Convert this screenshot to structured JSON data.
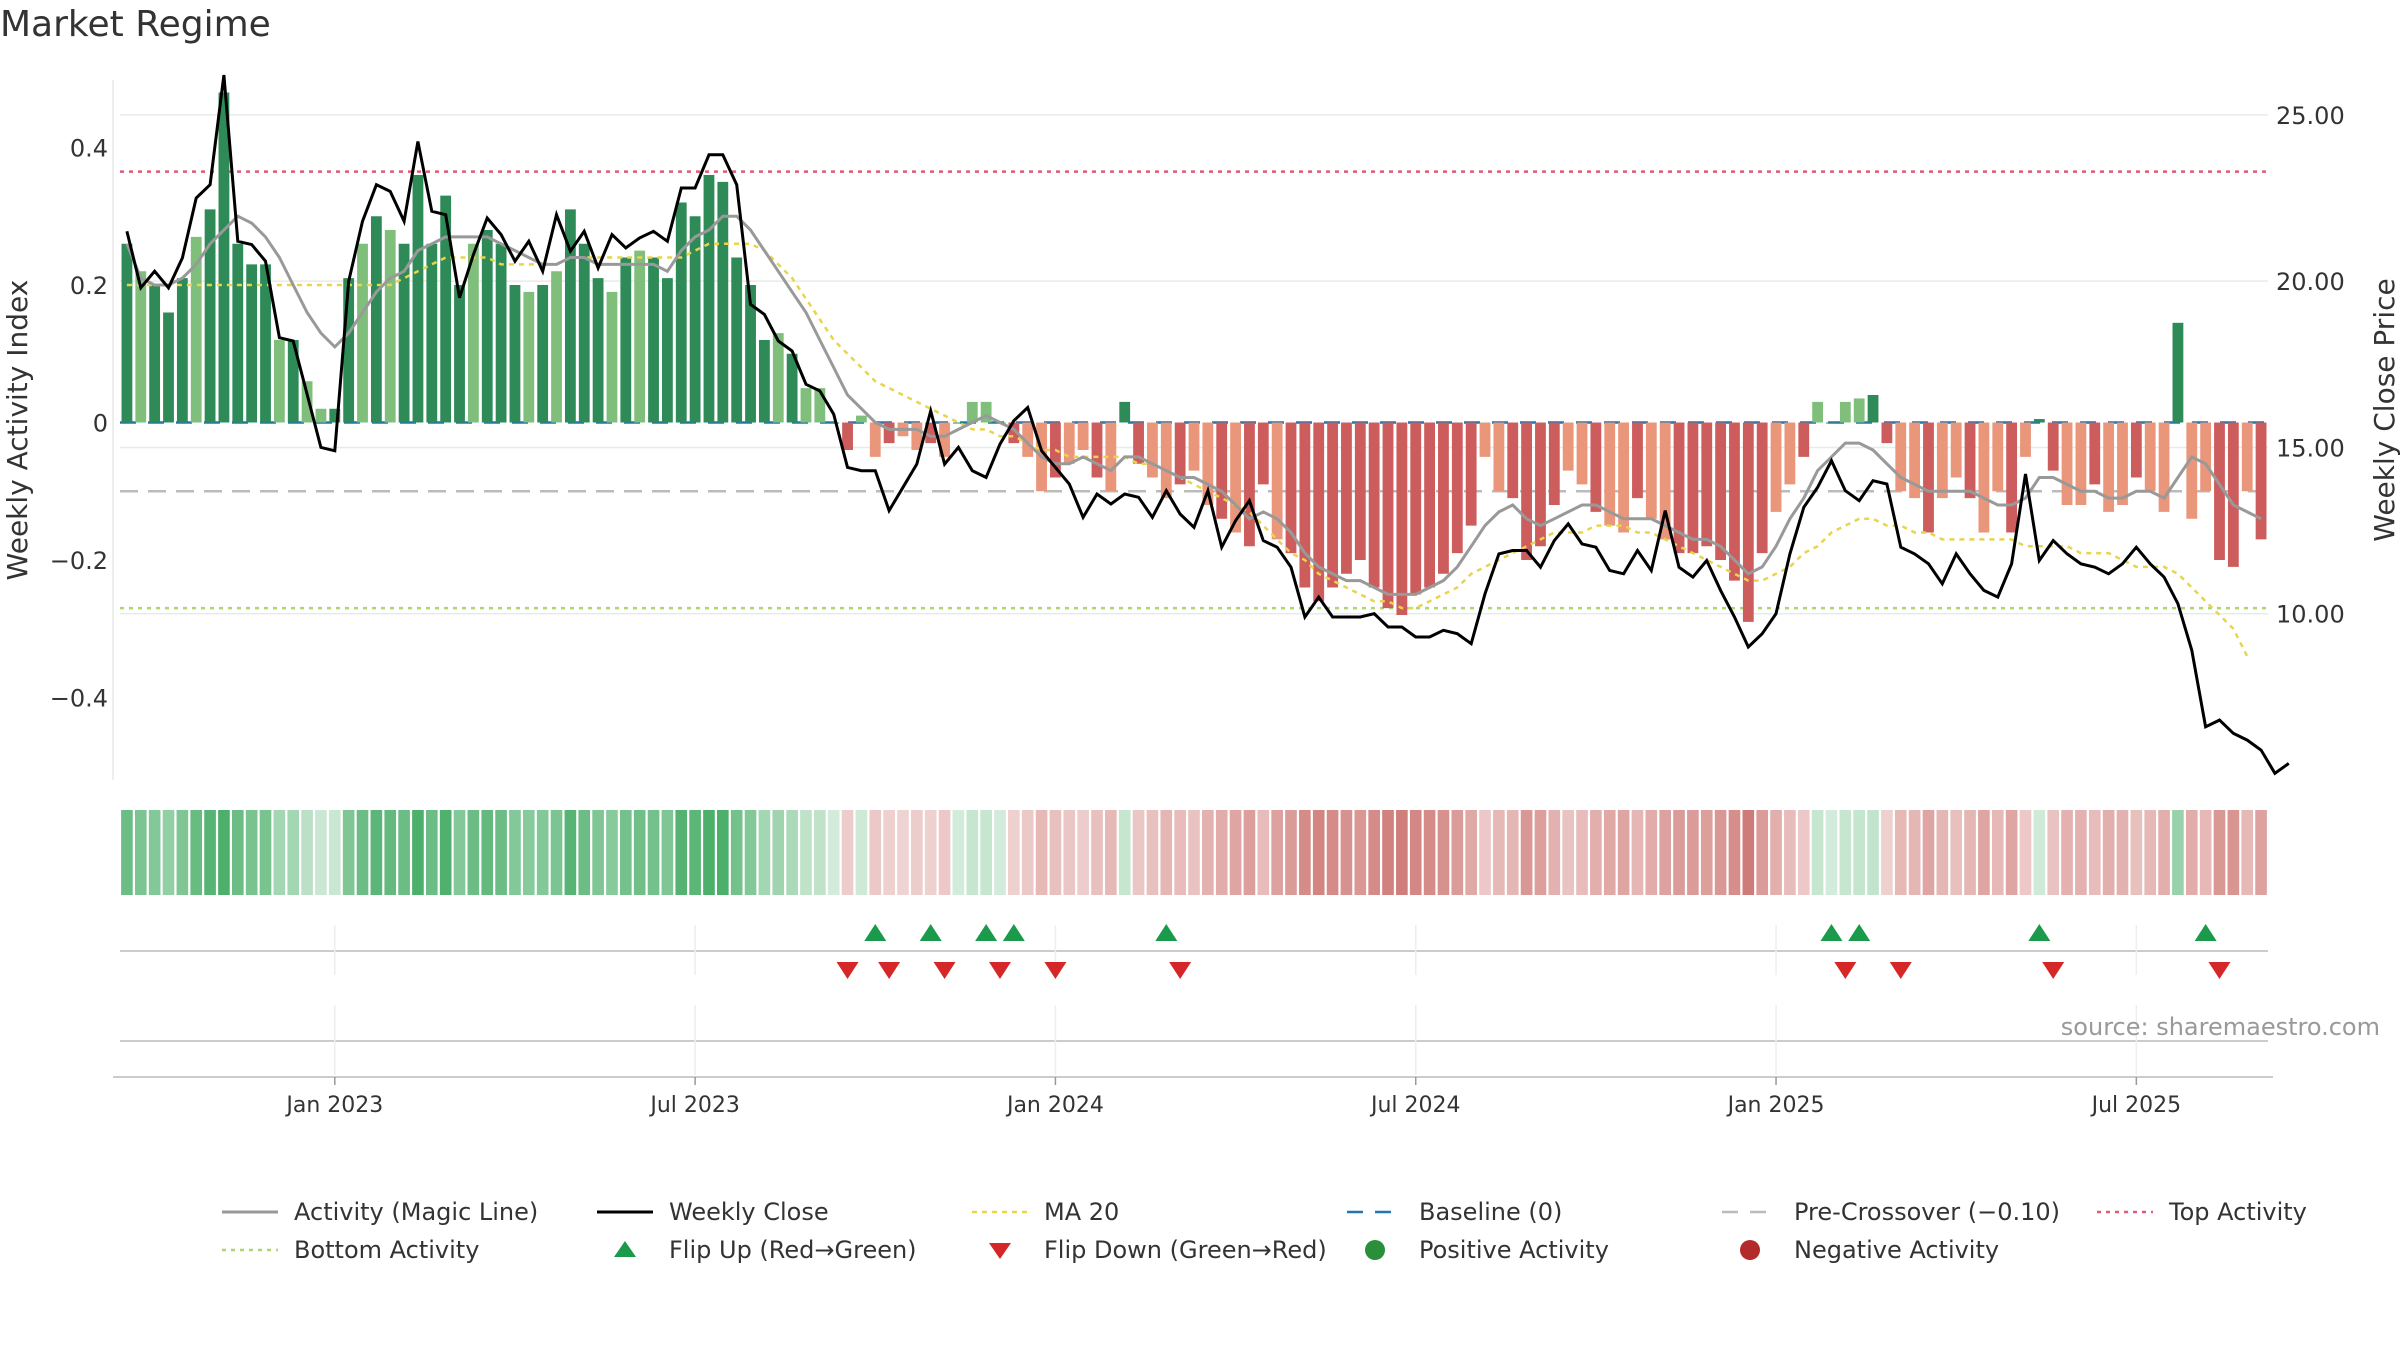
{
  "title": "Market Regime",
  "source": "source: sharemaestro.com",
  "colors": {
    "green_dark": "#2e8b57",
    "green_light": "#7fbf7b",
    "red_dark": "#cd5c5c",
    "red_light": "#e9967a",
    "activity_line": "#999999",
    "close_line": "#000000",
    "ma20": "#e8d44d",
    "baseline": "#1f77b4",
    "pre_crossover": "#bbbbbb",
    "top_activity": "#e05a7a",
    "bottom_activity": "#a8d86e",
    "flip_up": "#1a9a4a",
    "flip_down": "#d62728"
  },
  "chart_data": {
    "type": "bar",
    "ylabel_left": "Weekly Activity Index",
    "ylabel_right": "Weekly Close Price",
    "ylim_left": [
      -0.52,
      0.52
    ],
    "ylim_right": [
      5.0,
      26.5
    ],
    "left_ticks": [
      {
        "value": 0.4,
        "label": "0.4"
      },
      {
        "value": 0.2,
        "label": "0.2"
      },
      {
        "value": 0,
        "label": "0"
      },
      {
        "value": -0.2,
        "label": "−0.2"
      },
      {
        "value": -0.4,
        "label": "−0.4"
      }
    ],
    "right_ticks": [
      {
        "value": 25,
        "label": "25.00"
      },
      {
        "value": 20,
        "label": "20.00"
      },
      {
        "value": 15,
        "label": "15.00"
      },
      {
        "value": 10,
        "label": "10.00"
      }
    ],
    "x_ticks": [
      {
        "index": 15,
        "label": "Jan 2023"
      },
      {
        "index": 41,
        "label": "Jul 2023"
      },
      {
        "index": 67,
        "label": "Jan 2024"
      },
      {
        "index": 93,
        "label": "Jul 2024"
      },
      {
        "index": 119,
        "label": "Jan 2025"
      },
      {
        "index": 145,
        "label": "Jul 2025"
      }
    ],
    "reference_lines": {
      "top_activity": 0.365,
      "bottom_activity": -0.27,
      "pre_crossover": -0.1,
      "baseline": 0
    },
    "activity": [
      0.26,
      0.22,
      0.2,
      0.16,
      0.21,
      0.27,
      0.31,
      0.48,
      0.26,
      0.23,
      0.23,
      0.12,
      0.12,
      0.06,
      0.02,
      0.02,
      0.21,
      0.26,
      0.3,
      0.28,
      0.26,
      0.36,
      0.26,
      0.33,
      0.2,
      0.26,
      0.28,
      0.26,
      0.2,
      0.19,
      0.2,
      0.22,
      0.31,
      0.26,
      0.21,
      0.19,
      0.24,
      0.25,
      0.24,
      0.21,
      0.32,
      0.3,
      0.36,
      0.35,
      0.24,
      0.2,
      0.12,
      0.13,
      0.1,
      0.05,
      0.05,
      0.0,
      -0.04,
      0.01,
      -0.05,
      -0.03,
      -0.02,
      -0.04,
      -0.03,
      -0.05,
      0.0,
      0.03,
      0.03,
      0.0,
      -0.03,
      -0.05,
      -0.1,
      -0.08,
      -0.06,
      -0.04,
      -0.08,
      -0.1,
      0.03,
      -0.06,
      -0.08,
      -0.11,
      -0.09,
      -0.07,
      -0.12,
      -0.14,
      -0.16,
      -0.18,
      -0.09,
      -0.17,
      -0.19,
      -0.24,
      -0.26,
      -0.24,
      -0.22,
      -0.2,
      -0.24,
      -0.27,
      -0.28,
      -0.25,
      -0.24,
      -0.22,
      -0.19,
      -0.15,
      -0.05,
      -0.1,
      -0.11,
      -0.2,
      -0.18,
      -0.12,
      -0.07,
      -0.09,
      -0.13,
      -0.15,
      -0.16,
      -0.11,
      -0.14,
      -0.17,
      -0.19,
      -0.19,
      -0.18,
      -0.2,
      -0.23,
      -0.29,
      -0.19,
      -0.13,
      -0.09,
      -0.05,
      0.03,
      0.0,
      0.03,
      0.035,
      0.04,
      -0.03,
      -0.1,
      -0.11,
      -0.16,
      -0.11,
      -0.08,
      -0.11,
      -0.16,
      -0.1,
      -0.16,
      -0.05,
      0.005,
      -0.07,
      -0.12,
      -0.12,
      -0.09,
      -0.13,
      -0.12,
      -0.08,
      -0.1,
      -0.13,
      0.145,
      -0.14,
      -0.1,
      -0.2,
      -0.21,
      -0.1,
      -0.17
    ],
    "magic_line": [
      0.26,
      0.21,
      0.2,
      0.2,
      0.21,
      0.23,
      0.26,
      0.28,
      0.3,
      0.29,
      0.27,
      0.24,
      0.2,
      0.16,
      0.13,
      0.11,
      0.13,
      0.16,
      0.19,
      0.21,
      0.22,
      0.25,
      0.26,
      0.27,
      0.27,
      0.27,
      0.27,
      0.26,
      0.25,
      0.24,
      0.23,
      0.23,
      0.24,
      0.24,
      0.23,
      0.23,
      0.23,
      0.23,
      0.23,
      0.22,
      0.25,
      0.27,
      0.28,
      0.3,
      0.3,
      0.28,
      0.25,
      0.22,
      0.19,
      0.16,
      0.12,
      0.08,
      0.04,
      0.02,
      0.0,
      -0.01,
      -0.01,
      -0.01,
      -0.02,
      -0.02,
      -0.01,
      0.0,
      0.01,
      0.0,
      -0.01,
      -0.03,
      -0.05,
      -0.06,
      -0.06,
      -0.05,
      -0.06,
      -0.07,
      -0.05,
      -0.05,
      -0.06,
      -0.07,
      -0.08,
      -0.08,
      -0.09,
      -0.1,
      -0.12,
      -0.14,
      -0.13,
      -0.14,
      -0.16,
      -0.19,
      -0.21,
      -0.22,
      -0.23,
      -0.23,
      -0.24,
      -0.25,
      -0.25,
      -0.25,
      -0.24,
      -0.23,
      -0.21,
      -0.18,
      -0.15,
      -0.13,
      -0.12,
      -0.14,
      -0.15,
      -0.14,
      -0.13,
      -0.12,
      -0.12,
      -0.13,
      -0.14,
      -0.14,
      -0.14,
      -0.15,
      -0.16,
      -0.17,
      -0.17,
      -0.18,
      -0.2,
      -0.22,
      -0.21,
      -0.18,
      -0.14,
      -0.11,
      -0.07,
      -0.05,
      -0.03,
      -0.03,
      -0.04,
      -0.06,
      -0.08,
      -0.09,
      -0.1,
      -0.1,
      -0.1,
      -0.1,
      -0.11,
      -0.12,
      -0.12,
      -0.11,
      -0.08,
      -0.08,
      -0.09,
      -0.1,
      -0.1,
      -0.11,
      -0.11,
      -0.1,
      -0.1,
      -0.11,
      -0.08,
      -0.05,
      -0.06,
      -0.09,
      -0.12,
      -0.13,
      -0.14
    ],
    "ma20": [
      0.2,
      0.2,
      0.2,
      0.2,
      0.2,
      0.2,
      0.2,
      0.2,
      0.2,
      0.2,
      0.2,
      0.2,
      0.2,
      0.2,
      0.2,
      0.2,
      0.2,
      0.2,
      0.2,
      0.2,
      0.21,
      0.22,
      0.23,
      0.24,
      0.24,
      0.24,
      0.24,
      0.23,
      0.23,
      0.23,
      0.23,
      0.23,
      0.24,
      0.24,
      0.24,
      0.24,
      0.24,
      0.24,
      0.24,
      0.24,
      0.24,
      0.25,
      0.26,
      0.26,
      0.26,
      0.26,
      0.25,
      0.23,
      0.21,
      0.18,
      0.15,
      0.12,
      0.1,
      0.08,
      0.06,
      0.05,
      0.04,
      0.03,
      0.02,
      0.01,
      0.0,
      -0.01,
      -0.01,
      -0.02,
      -0.02,
      -0.03,
      -0.04,
      -0.04,
      -0.05,
      -0.05,
      -0.05,
      -0.05,
      -0.05,
      -0.06,
      -0.06,
      -0.07,
      -0.08,
      -0.09,
      -0.1,
      -0.11,
      -0.12,
      -0.13,
      -0.15,
      -0.17,
      -0.19,
      -0.2,
      -0.22,
      -0.23,
      -0.24,
      -0.25,
      -0.26,
      -0.26,
      -0.27,
      -0.27,
      -0.26,
      -0.25,
      -0.24,
      -0.22,
      -0.21,
      -0.2,
      -0.19,
      -0.18,
      -0.17,
      -0.16,
      -0.16,
      -0.16,
      -0.15,
      -0.15,
      -0.15,
      -0.16,
      -0.16,
      -0.17,
      -0.18,
      -0.19,
      -0.2,
      -0.21,
      -0.22,
      -0.23,
      -0.23,
      -0.22,
      -0.21,
      -0.19,
      -0.18,
      -0.16,
      -0.15,
      -0.14,
      -0.14,
      -0.15,
      -0.15,
      -0.16,
      -0.16,
      -0.17,
      -0.17,
      -0.17,
      -0.17,
      -0.17,
      -0.17,
      -0.18,
      -0.18,
      -0.18,
      -0.18,
      -0.19,
      -0.19,
      -0.19,
      -0.2,
      -0.21,
      -0.21,
      -0.21,
      -0.22,
      -0.24,
      -0.26,
      -0.28,
      -0.3,
      -0.34
    ],
    "close": [
      21.5,
      19.8,
      20.3,
      19.8,
      20.7,
      22.5,
      22.9,
      26.2,
      21.2,
      21.1,
      20.6,
      18.3,
      18.2,
      16.6,
      15.0,
      14.9,
      20.0,
      21.8,
      22.9,
      22.7,
      21.8,
      24.2,
      22.1,
      22.0,
      19.5,
      20.8,
      21.9,
      21.4,
      20.6,
      21.2,
      20.3,
      22.0,
      20.9,
      21.5,
      20.4,
      21.4,
      21.0,
      21.3,
      21.5,
      21.2,
      22.8,
      22.8,
      23.8,
      23.8,
      22.9,
      19.3,
      19.0,
      18.2,
      17.9,
      16.9,
      16.7,
      16.0,
      14.4,
      14.3,
      14.3,
      13.1,
      13.8,
      14.5,
      16.1,
      14.5,
      15.0,
      14.3,
      14.1,
      15.1,
      15.8,
      16.2,
      14.9,
      14.4,
      13.9,
      12.9,
      13.6,
      13.3,
      13.6,
      13.5,
      12.9,
      13.7,
      13.0,
      12.6,
      13.7,
      12.0,
      12.8,
      13.4,
      12.2,
      12.0,
      11.4,
      9.9,
      10.5,
      9.9,
      9.9,
      9.9,
      10.0,
      9.6,
      9.6,
      9.3,
      9.3,
      9.5,
      9.4,
      9.1,
      10.6,
      11.8,
      11.9,
      11.9,
      11.4,
      12.2,
      12.7,
      12.1,
      12.0,
      11.3,
      11.2,
      11.9,
      11.3,
      13.1,
      11.4,
      11.1,
      11.6,
      10.7,
      9.9,
      9.0,
      9.4,
      10.0,
      11.8,
      13.2,
      13.8,
      14.6,
      13.7,
      13.4,
      14.0,
      13.9,
      12.0,
      11.8,
      11.5,
      10.9,
      11.8,
      11.2,
      10.7,
      10.5,
      11.5,
      14.2,
      11.6,
      12.2,
      11.8,
      11.5,
      11.4,
      11.2,
      11.5,
      12.0,
      11.5,
      11.1,
      10.3,
      8.9,
      6.6,
      6.8,
      6.4,
      6.2,
      5.9,
      5.2,
      5.5
    ],
    "flip_up_indices": [
      54,
      58,
      62,
      64,
      75,
      123,
      125,
      138,
      150
    ],
    "flip_down_indices": [
      52,
      55,
      59,
      63,
      67,
      76,
      124,
      128,
      139,
      151
    ]
  },
  "legend": [
    {
      "key": "activity_line",
      "label": "Activity (Magic Line)"
    },
    {
      "key": "close_line",
      "label": "Weekly Close"
    },
    {
      "key": "ma20",
      "label": "MA 20"
    },
    {
      "key": "baseline",
      "label": "Baseline (0)"
    },
    {
      "key": "pre_crossover",
      "label": "Pre-Crossover (−0.10)"
    },
    {
      "key": "top_activity",
      "label": "Top Activity"
    },
    {
      "key": "bottom_activity",
      "label": "Bottom Activity"
    },
    {
      "key": "flip_up",
      "label": "Flip Up (Red→Green)"
    },
    {
      "key": "flip_down",
      "label": "Flip Down (Green→Red)"
    },
    {
      "key": "positive",
      "label": "Positive Activity"
    },
    {
      "key": "negative",
      "label": "Negative Activity"
    }
  ]
}
